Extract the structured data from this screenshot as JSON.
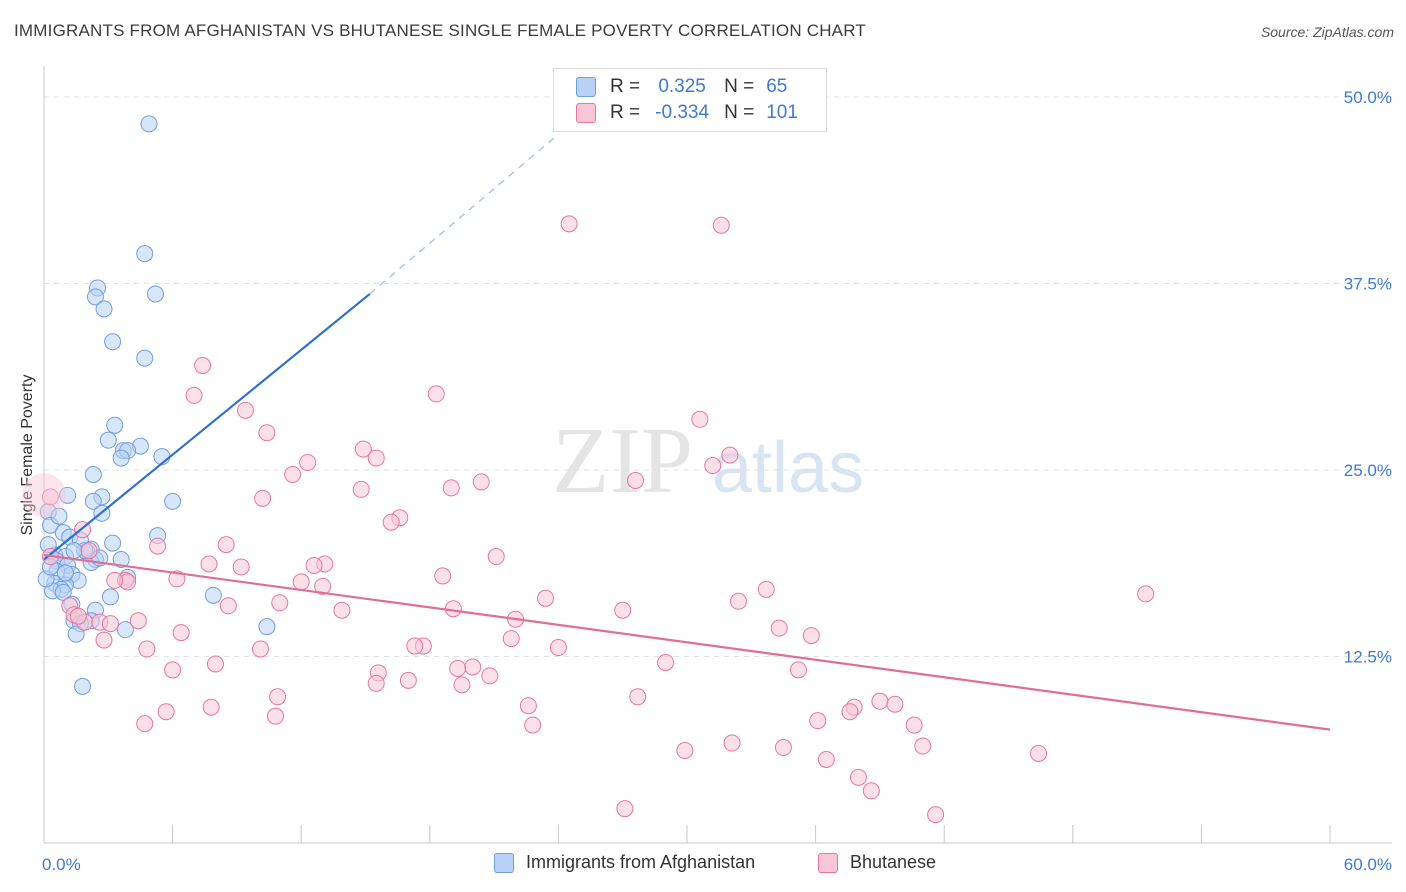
{
  "title": "IMMIGRANTS FROM AFGHANISTAN VS BHUTANESE SINGLE FEMALE POVERTY CORRELATION CHART",
  "source": "Source: ZipAtlas.com",
  "watermark": {
    "zip": "ZIP",
    "atlas": "atlas"
  },
  "legend": {
    "r_label": "R =",
    "n_label": "N =",
    "series": [
      {
        "name": "Immigrants from Afghanistan",
        "r": "0.325",
        "n": "65",
        "color": "#6f9fe0",
        "fill": "#b8d2f5"
      },
      {
        "name": "Bhutanese",
        "r": "-0.334",
        "n": "101",
        "color": "#e8769f",
        "fill": "#f9c6d6"
      }
    ]
  },
  "chart_data": {
    "type": "scatter",
    "title": "IMMIGRANTS FROM AFGHANISTAN VS BHUTANESE SINGLE FEMALE POVERTY CORRELATION CHART",
    "xlabel": "",
    "ylabel": "Single Female Poverty",
    "xlim": [
      0,
      60
    ],
    "ylim": [
      0,
      50
    ],
    "x_tick_labels": [
      "0.0%",
      "60.0%"
    ],
    "y_ticks": [
      12.5,
      25.0,
      37.5,
      50.0
    ],
    "y_tick_labels": [
      "12.5%",
      "25.0%",
      "37.5%",
      "50.0%"
    ],
    "grid": true,
    "series": [
      {
        "name": "Immigrants from Afghanistan",
        "color": "#6f9fe0",
        "trend": {
          "x0": 0.0,
          "y0": 19.0,
          "x1": 15.2,
          "y1": 36.8,
          "dash_x1": 24.0,
          "dash_y1": 47.5
        },
        "points": [
          [
            4.9,
            48.2
          ],
          [
            4.7,
            39.5
          ],
          [
            2.5,
            37.2
          ],
          [
            2.4,
            36.6
          ],
          [
            5.2,
            36.8
          ],
          [
            2.8,
            35.8
          ],
          [
            3.2,
            33.6
          ],
          [
            4.7,
            32.5
          ],
          [
            3.3,
            28.0
          ],
          [
            3.0,
            27.0
          ],
          [
            4.5,
            26.6
          ],
          [
            3.7,
            26.3
          ],
          [
            3.9,
            26.3
          ],
          [
            3.6,
            25.8
          ],
          [
            5.5,
            25.9
          ],
          [
            2.3,
            24.7
          ],
          [
            1.1,
            23.3
          ],
          [
            2.7,
            23.2
          ],
          [
            2.3,
            22.9
          ],
          [
            6.0,
            22.9
          ],
          [
            0.2,
            22.2
          ],
          [
            2.7,
            22.1
          ],
          [
            0.3,
            21.3
          ],
          [
            0.9,
            20.8
          ],
          [
            1.2,
            20.5
          ],
          [
            1.7,
            20.3
          ],
          [
            5.3,
            20.6
          ],
          [
            3.2,
            20.1
          ],
          [
            2.2,
            19.7
          ],
          [
            2.0,
            19.5
          ],
          [
            0.5,
            19.3
          ],
          [
            1.0,
            19.2
          ],
          [
            2.4,
            19.0
          ],
          [
            3.6,
            19.0
          ],
          [
            0.6,
            18.9
          ],
          [
            2.2,
            18.8
          ],
          [
            1.1,
            18.6
          ],
          [
            0.6,
            18.2
          ],
          [
            1.3,
            18.0
          ],
          [
            3.9,
            17.8
          ],
          [
            1.6,
            17.6
          ],
          [
            0.5,
            17.4
          ],
          [
            1.0,
            17.3
          ],
          [
            0.8,
            17.0
          ],
          [
            0.4,
            16.9
          ],
          [
            0.9,
            16.8
          ],
          [
            7.9,
            16.6
          ],
          [
            1.3,
            16.0
          ],
          [
            2.4,
            15.6
          ],
          [
            3.1,
            16.5
          ],
          [
            1.4,
            14.9
          ],
          [
            2.2,
            14.9
          ],
          [
            1.7,
            14.7
          ],
          [
            3.8,
            14.3
          ],
          [
            10.4,
            14.5
          ],
          [
            1.5,
            14.0
          ],
          [
            1.8,
            10.5
          ],
          [
            0.2,
            20.0
          ],
          [
            0.1,
            17.7
          ],
          [
            1.9,
            19.6
          ],
          [
            2.6,
            19.1
          ],
          [
            1.4,
            19.6
          ],
          [
            0.7,
            21.9
          ],
          [
            1.0,
            18.1
          ],
          [
            0.3,
            18.5
          ]
        ]
      },
      {
        "name": "Bhutanese",
        "color": "#e8769f",
        "trend": {
          "x0": 0.0,
          "y0": 19.3,
          "x1": 60.0,
          "y1": 7.6
        },
        "points": [
          [
            0.3,
            23.2
          ],
          [
            24.5,
            41.5
          ],
          [
            31.6,
            41.4
          ],
          [
            7.4,
            32.0
          ],
          [
            7.0,
            30.0
          ],
          [
            18.3,
            30.1
          ],
          [
            9.4,
            29.0
          ],
          [
            30.6,
            28.4
          ],
          [
            10.4,
            27.5
          ],
          [
            14.9,
            26.4
          ],
          [
            15.5,
            25.8
          ],
          [
            12.3,
            25.5
          ],
          [
            32.0,
            26.0
          ],
          [
            31.2,
            25.3
          ],
          [
            11.6,
            24.7
          ],
          [
            27.6,
            24.3
          ],
          [
            20.4,
            24.2
          ],
          [
            19.0,
            23.8
          ],
          [
            14.8,
            23.7
          ],
          [
            10.2,
            23.1
          ],
          [
            16.6,
            21.8
          ],
          [
            16.2,
            21.5
          ],
          [
            1.8,
            21.0
          ],
          [
            8.5,
            20.0
          ],
          [
            5.3,
            19.9
          ],
          [
            2.1,
            19.6
          ],
          [
            21.1,
            19.2
          ],
          [
            0.3,
            19.2
          ],
          [
            7.7,
            18.7
          ],
          [
            13.1,
            18.7
          ],
          [
            12.6,
            18.6
          ],
          [
            9.2,
            18.5
          ],
          [
            3.8,
            17.6
          ],
          [
            6.2,
            17.7
          ],
          [
            3.9,
            17.5
          ],
          [
            12.0,
            17.5
          ],
          [
            18.6,
            17.9
          ],
          [
            13.0,
            17.2
          ],
          [
            33.7,
            17.0
          ],
          [
            3.3,
            17.6
          ],
          [
            51.4,
            16.7
          ],
          [
            23.4,
            16.4
          ],
          [
            32.4,
            16.2
          ],
          [
            1.2,
            15.9
          ],
          [
            11.0,
            16.1
          ],
          [
            8.6,
            15.9
          ],
          [
            13.9,
            15.6
          ],
          [
            19.1,
            15.7
          ],
          [
            27.0,
            15.6
          ],
          [
            1.4,
            15.3
          ],
          [
            4.4,
            14.9
          ],
          [
            22.0,
            15.0
          ],
          [
            1.9,
            14.8
          ],
          [
            1.6,
            15.2
          ],
          [
            2.6,
            14.8
          ],
          [
            3.1,
            14.7
          ],
          [
            34.3,
            14.4
          ],
          [
            35.8,
            13.9
          ],
          [
            6.4,
            14.1
          ],
          [
            21.8,
            13.7
          ],
          [
            2.8,
            13.6
          ],
          [
            17.7,
            13.2
          ],
          [
            17.3,
            13.2
          ],
          [
            24.0,
            13.1
          ],
          [
            10.1,
            13.0
          ],
          [
            4.8,
            13.0
          ],
          [
            29.0,
            12.1
          ],
          [
            8.0,
            12.0
          ],
          [
            35.2,
            11.6
          ],
          [
            20.0,
            11.8
          ],
          [
            19.3,
            11.7
          ],
          [
            6.0,
            11.6
          ],
          [
            15.6,
            11.4
          ],
          [
            20.8,
            11.2
          ],
          [
            17.0,
            10.9
          ],
          [
            15.5,
            10.7
          ],
          [
            19.5,
            10.6
          ],
          [
            27.7,
            9.8
          ],
          [
            10.9,
            9.8
          ],
          [
            39.0,
            9.5
          ],
          [
            39.7,
            9.3
          ],
          [
            37.8,
            9.1
          ],
          [
            22.6,
            9.2
          ],
          [
            7.8,
            9.1
          ],
          [
            37.6,
            8.8
          ],
          [
            5.7,
            8.8
          ],
          [
            10.8,
            8.5
          ],
          [
            36.1,
            8.2
          ],
          [
            40.6,
            7.9
          ],
          [
            4.7,
            8.0
          ],
          [
            22.8,
            7.9
          ],
          [
            32.1,
            6.7
          ],
          [
            34.5,
            6.4
          ],
          [
            41.0,
            6.5
          ],
          [
            29.9,
            6.2
          ],
          [
            46.4,
            6.0
          ],
          [
            36.5,
            5.6
          ],
          [
            38.0,
            4.4
          ],
          [
            38.6,
            3.5
          ],
          [
            27.1,
            2.3
          ],
          [
            41.6,
            1.9
          ]
        ]
      }
    ]
  }
}
